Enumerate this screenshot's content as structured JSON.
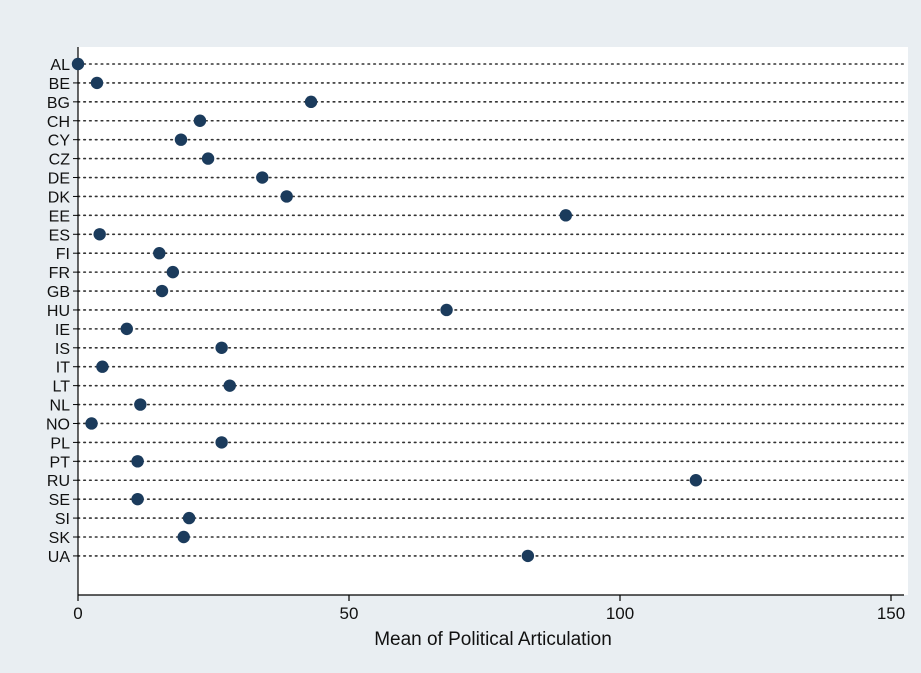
{
  "chart_data": {
    "type": "scatter",
    "orientation": "horizontal-dot-plot",
    "categories": [
      "AL",
      "BE",
      "BG",
      "CH",
      "CY",
      "CZ",
      "DE",
      "DK",
      "EE",
      "ES",
      "FI",
      "FR",
      "GB",
      "HU",
      "IE",
      "IS",
      "IT",
      "LT",
      "NL",
      "NO",
      "PL",
      "PT",
      "RU",
      "SE",
      "SI",
      "SK",
      "UA"
    ],
    "values": [
      0,
      3.5,
      43,
      22.5,
      19,
      24,
      34,
      38.5,
      90,
      4,
      15,
      17.5,
      15.5,
      68,
      9,
      26.5,
      4.5,
      28,
      11.5,
      2.5,
      26.5,
      11,
      114,
      11,
      20.5,
      19.5,
      83
    ],
    "xlabel": "Mean of Political Articulation",
    "ylabel": "",
    "title": "",
    "xlim": [
      0,
      155
    ],
    "xticks": [
      0,
      50,
      100,
      150
    ],
    "xtick_labels": [
      "0",
      "50",
      "100",
      "150"
    ],
    "grid": "dotted horizontal lines per category",
    "colors": {
      "background": "#e9eef2",
      "plot_area": "#ffffff",
      "marker": "#1b3b5c",
      "grid": "#333333",
      "axis": "#000000"
    }
  }
}
